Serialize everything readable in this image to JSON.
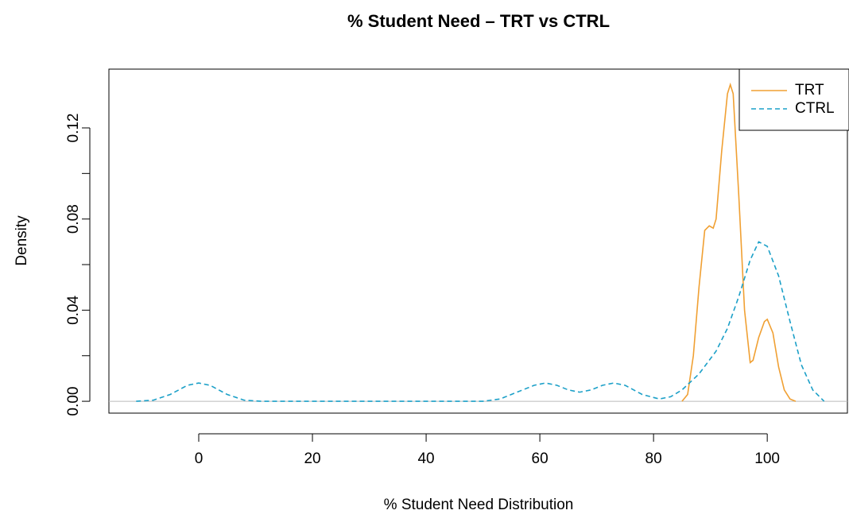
{
  "chart_data": {
    "type": "line",
    "title": "% Student Need – TRT vs CTRL",
    "x_label": "% Student Need Distribution",
    "y_label": "Density",
    "xlim": [
      -15.8,
      114.1
    ],
    "ylim": [
      -0.0052,
      0.1458
    ],
    "xticks": [
      0,
      20,
      40,
      60,
      80,
      100
    ],
    "yticks": [
      {
        "value": 0,
        "label": "0.00"
      },
      {
        "value": 0.04,
        "label": "0.04"
      },
      {
        "value": 0.08,
        "label": "0.08"
      },
      {
        "value": 0.12,
        "label": "0.12"
      }
    ],
    "yticks_minor": [
      0.02,
      0.06,
      0.1
    ],
    "hline": 0,
    "legend": "topright",
    "series": [
      {
        "name": "TRT",
        "color": "#f0a033",
        "dash": false,
        "x": [
          85,
          86,
          87,
          88,
          89,
          89.8,
          90.5,
          91,
          92,
          93,
          93.5,
          94,
          95,
          96,
          97,
          97.5,
          98.5,
          99.5,
          100,
          101,
          102,
          103,
          104,
          105
        ],
        "values": [
          0,
          0.003,
          0.02,
          0.05,
          0.075,
          0.077,
          0.076,
          0.08,
          0.11,
          0.135,
          0.139,
          0.135,
          0.09,
          0.04,
          0.017,
          0.018,
          0.028,
          0.035,
          0.036,
          0.03,
          0.015,
          0.005,
          0.001,
          0
        ]
      },
      {
        "name": "CTRL",
        "color": "#1ca0c8",
        "dash": true,
        "x": [
          -11,
          -8,
          -5,
          -2,
          0,
          2,
          5,
          8,
          11,
          50,
          53,
          56,
          59,
          61,
          63,
          65,
          67,
          69,
          71,
          73,
          75,
          78,
          81,
          83,
          85,
          88,
          91,
          93,
          95,
          97,
          98.5,
          100,
          102,
          104,
          106,
          108,
          110
        ],
        "values": [
          0,
          0.0005,
          0.003,
          0.007,
          0.008,
          0.007,
          0.003,
          0.0005,
          0,
          0,
          0.001,
          0.004,
          0.007,
          0.008,
          0.007,
          0.005,
          0.004,
          0.005,
          0.007,
          0.008,
          0.007,
          0.003,
          0.001,
          0.002,
          0.005,
          0.012,
          0.022,
          0.032,
          0.046,
          0.062,
          0.07,
          0.068,
          0.055,
          0.035,
          0.016,
          0.005,
          0
        ]
      }
    ]
  }
}
